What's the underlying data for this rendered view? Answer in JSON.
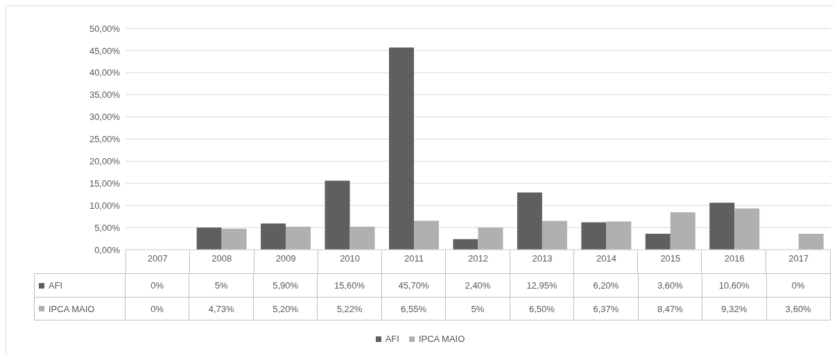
{
  "chart_data": {
    "type": "bar",
    "categories": [
      "2007",
      "2008",
      "2009",
      "2010",
      "2011",
      "2012",
      "2013",
      "2014",
      "2015",
      "2016",
      "2017"
    ],
    "series": [
      {
        "name": "AFI",
        "color": "#5f5f5f",
        "values": [
          0,
          5,
          5.9,
          15.6,
          45.7,
          2.4,
          12.95,
          6.2,
          3.6,
          10.6,
          0
        ],
        "value_labels": [
          "0%",
          "5%",
          "5,90%",
          "15,60%",
          "45,70%",
          "2,40%",
          "12,95%",
          "6,20%",
          "3,60%",
          "10,60%",
          "0%"
        ]
      },
      {
        "name": "IPCA MAIO",
        "color": "#b0b0b0",
        "values": [
          0,
          4.73,
          5.2,
          5.22,
          6.55,
          5,
          6.5,
          6.37,
          8.47,
          9.32,
          3.6
        ],
        "value_labels": [
          "0%",
          "4,73%",
          "5,20%",
          "5,22%",
          "6,55%",
          "5%",
          "6,50%",
          "6,37%",
          "8,47%",
          "9,32%",
          "3,60%"
        ]
      }
    ],
    "ylim": [
      0,
      50
    ],
    "yticks": [
      {
        "value": 0,
        "label": "0,00%"
      },
      {
        "value": 5,
        "label": "5,00%"
      },
      {
        "value": 10,
        "label": "10,00%"
      },
      {
        "value": 15,
        "label": "15,00%"
      },
      {
        "value": 20,
        "label": "20,00%"
      },
      {
        "value": 25,
        "label": "25,00%"
      },
      {
        "value": 30,
        "label": "30,00%"
      },
      {
        "value": 35,
        "label": "35,00%"
      },
      {
        "value": 40,
        "label": "40,00%"
      },
      {
        "value": 45,
        "label": "45,00%"
      },
      {
        "value": 50,
        "label": "50,00%"
      }
    ],
    "grid": "y",
    "legend": "bottom"
  }
}
